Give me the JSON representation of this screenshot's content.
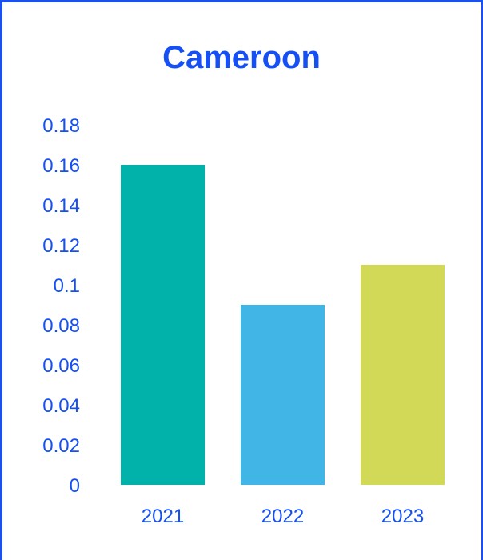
{
  "chart_data": {
    "type": "bar",
    "title": "Cameroon",
    "xlabel": "",
    "ylabel": "",
    "categories": [
      "2021",
      "2022",
      "2023"
    ],
    "values": [
      0.16,
      0.09,
      0.11
    ],
    "ylim": [
      0,
      0.18
    ],
    "yticks": [
      "0",
      "0.02",
      "0.04",
      "0.06",
      "0.08",
      "0.1",
      "0.12",
      "0.14",
      "0.16",
      "0.18"
    ],
    "bar_colors": [
      "#00b2a9",
      "#41b6e6",
      "#d1d957"
    ],
    "text_color": "#1450f5",
    "grid": false,
    "legend": "none"
  }
}
